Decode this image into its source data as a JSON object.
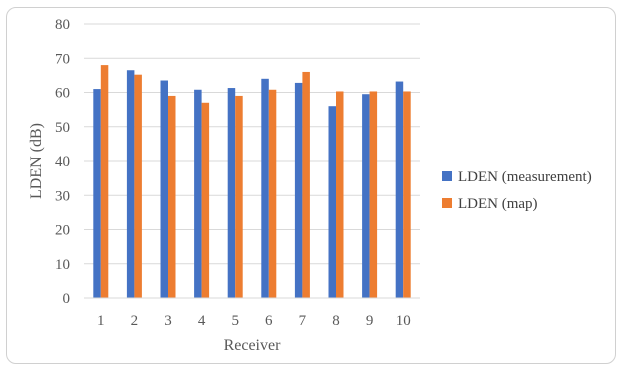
{
  "chart_data": {
    "type": "bar",
    "categories": [
      "1",
      "2",
      "3",
      "4",
      "5",
      "6",
      "7",
      "8",
      "9",
      "10"
    ],
    "series": [
      {
        "name": "LDEN (measurement)",
        "color": "#4472C4",
        "values": [
          61,
          66.5,
          63.5,
          60.8,
          61.3,
          64,
          62.8,
          56,
          59.5,
          63.2
        ]
      },
      {
        "name": "LDEN (map)",
        "color": "#ED7D31",
        "values": [
          68,
          65.2,
          59,
          57,
          59,
          60.8,
          66,
          60.3,
          60.3,
          60.3
        ]
      }
    ],
    "xlabel": "Receiver",
    "ylabel": "LDEN (dB)",
    "ylim": [
      0,
      80
    ],
    "yticks": [
      0,
      10,
      20,
      30,
      40,
      50,
      60,
      70,
      80
    ],
    "grid": true,
    "legend_position": "right"
  }
}
